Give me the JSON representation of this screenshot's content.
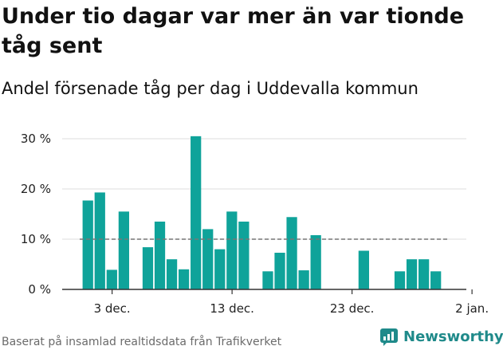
{
  "title": "Under tio dagar var mer än var tionde tåg sent",
  "subtitle": "Andel försenade tåg per dag i Uddevalla kommun",
  "footer": {
    "source": "Baserat på insamlad realtidsdata från Trafikverket",
    "brand": "Newsworthy"
  },
  "colors": {
    "bar": "#0fa39a",
    "reference_line": "#777777",
    "grid": "#dddddd",
    "brand": "#1f8a8a"
  },
  "chart_data": {
    "type": "bar",
    "title": "Under tio dagar var mer än var tionde tåg sent",
    "subtitle": "Andel försenade tåg per dag i Uddevalla kommun",
    "x_start": "2023-12-01",
    "x_end": "2024-01-02",
    "x": [
      "2023-12-01",
      "2023-12-02",
      "2023-12-03",
      "2023-12-04",
      "2023-12-05",
      "2023-12-06",
      "2023-12-07",
      "2023-12-08",
      "2023-12-09",
      "2023-12-10",
      "2023-12-11",
      "2023-12-12",
      "2023-12-13",
      "2023-12-14",
      "2023-12-15",
      "2023-12-16",
      "2023-12-17",
      "2023-12-18",
      "2023-12-19",
      "2023-12-20",
      "2023-12-21",
      "2023-12-22",
      "2023-12-23",
      "2023-12-24",
      "2023-12-25",
      "2023-12-26",
      "2023-12-27",
      "2023-12-28",
      "2023-12-29",
      "2023-12-30"
    ],
    "values": [
      17.7,
      19.3,
      3.9,
      15.5,
      null,
      8.4,
      13.5,
      6.0,
      4.0,
      30.5,
      12.0,
      8.0,
      15.5,
      13.5,
      null,
      3.6,
      7.3,
      14.4,
      3.8,
      10.8,
      null,
      null,
      null,
      7.7,
      null,
      null,
      3.6,
      6.0,
      6.0,
      3.6
    ],
    "reference_line": 10,
    "ylim": [
      0,
      30
    ],
    "yticks": [
      0,
      10,
      20,
      30
    ],
    "ytick_labels": [
      "0 %",
      "10 %",
      "20 %",
      "30 %"
    ],
    "xticks": [
      "2023-12-03",
      "2023-12-13",
      "2023-12-23",
      "2024-01-02"
    ],
    "xtick_labels": [
      "3 dec.",
      "13 dec.",
      "23 dec.",
      "2 jan."
    ],
    "grid": true,
    "legend": false
  }
}
